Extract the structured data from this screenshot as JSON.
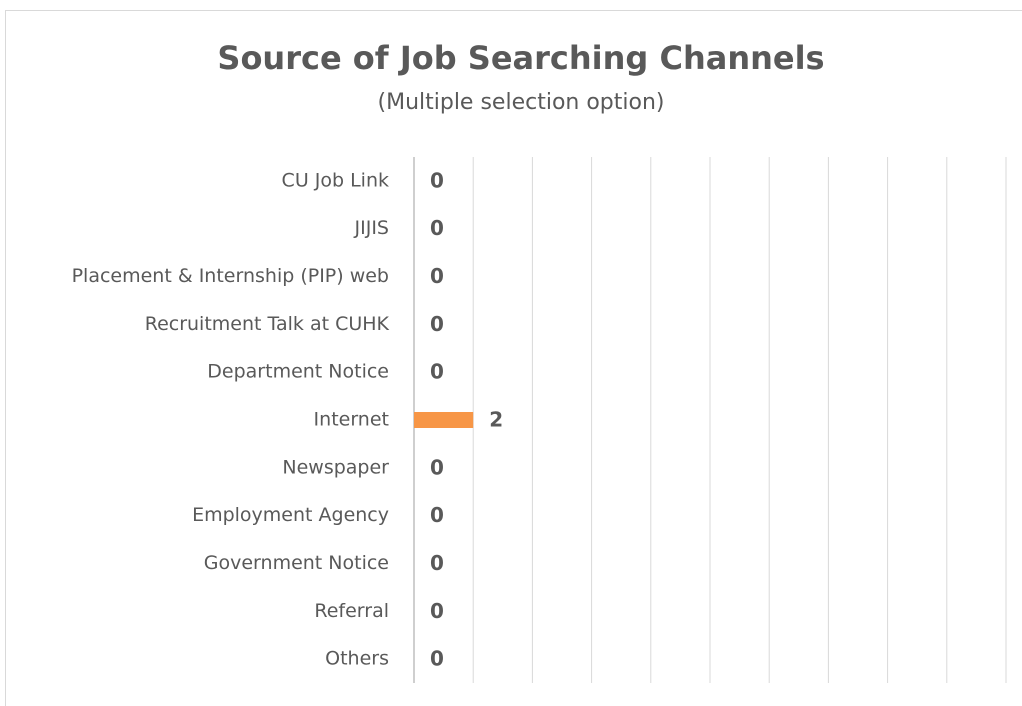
{
  "chart_data": {
    "type": "hbar",
    "title": "Source of Job Searching Channels",
    "subtitle": "(Multiple selection option)",
    "categories": [
      "CU Job Link",
      "JIJIS",
      "Placement & Internship (PIP) web",
      "Recruitment Talk at CUHK",
      "Department Notice",
      "Internet",
      "Newspaper",
      "Employment Agency",
      "Government Notice",
      "Referral",
      "Others"
    ],
    "values": [
      0,
      0,
      0,
      0,
      0,
      2,
      0,
      0,
      0,
      0,
      0
    ],
    "color": "#f79646",
    "xlim": [
      0,
      20
    ],
    "xticks": [
      0,
      2,
      4,
      6,
      8,
      10,
      12,
      14,
      16,
      18,
      20
    ],
    "grid": true
  }
}
